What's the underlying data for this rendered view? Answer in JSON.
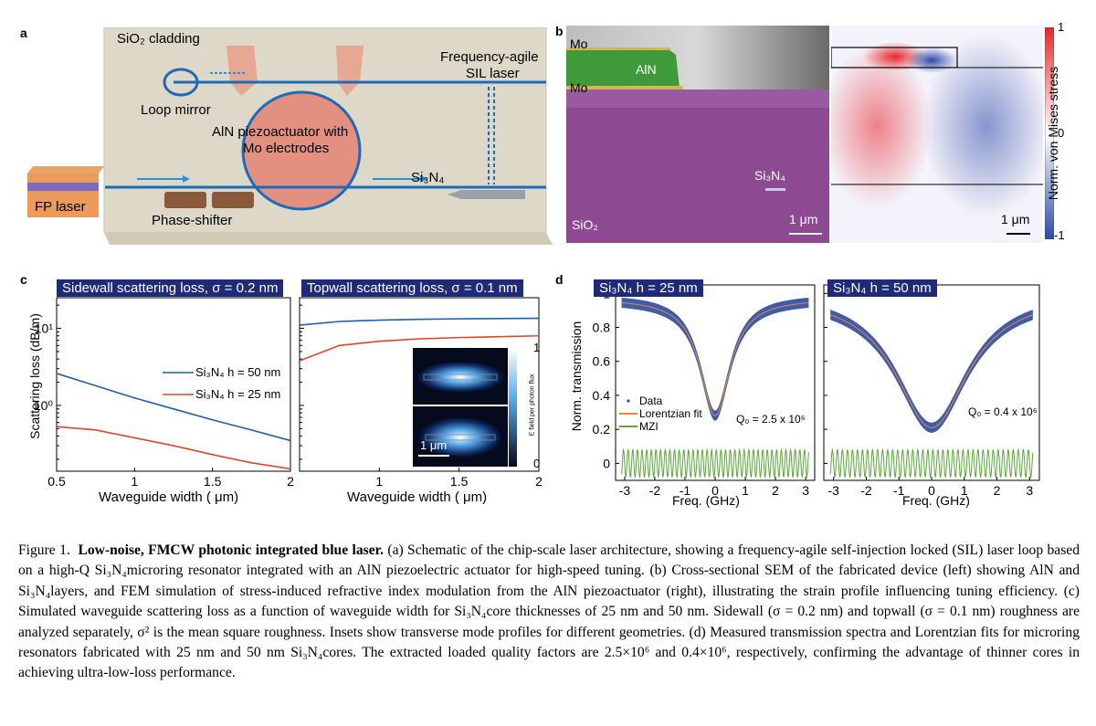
{
  "panels": {
    "a": {
      "label": "a",
      "cladding": "SiO₂ cladding",
      "sil_line1": "Frequency-agile",
      "sil_line2": "SIL laser",
      "loop_mirror": "Loop mirror",
      "aln_line1": "AlN piezoactuator with",
      "aln_line2": "Mo electrodes",
      "si3n4": "Si₃N₄",
      "fp_laser": "FP laser",
      "phase_shifter": "Phase-shifter"
    },
    "b": {
      "label": "b",
      "mo_top": "Mo",
      "aln": "AlN",
      "mo_bottom": "Mo",
      "si3n4": "Si₃N₄",
      "sio2": "SiO₂",
      "scale_left": "1 μm",
      "scale_right": "1 μm",
      "colorbar_label": "Norm. von Mises stress",
      "cb_top": "1",
      "cb_mid": "0",
      "cb_bottom": "-1",
      "colors": {
        "stress_pos": "#e8262b",
        "stress_neg": "#2b4aa8",
        "aln_false": "#3f9a3a",
        "sio2_false": "#8d4a93"
      }
    },
    "c": {
      "label": "c",
      "title_left": "Sidewall scattering loss, σ = 0.2 nm",
      "title_right": "Topwall scattering loss, σ = 0.1 nm",
      "ylabel": "Scattering loss (dB/m)",
      "xlabel_left": "Waveguide width ( μm)",
      "xlabel_right": "Waveguide width ( μm)",
      "legend_50": "Si₃N₄ h = 50 nm",
      "legend_25": "Si₃N₄ h = 25 nm",
      "inset_scale": "1 μm",
      "inset_cb_label": "E field per photon flux",
      "inset_cb_top": "1",
      "inset_cb_bottom": "0",
      "x_ticks_left": [
        "0.5",
        "1",
        "1.5",
        "2"
      ],
      "x_ticks_right": [
        "1",
        "1.5",
        "2"
      ],
      "y_ticks": [
        "10¹",
        "10⁰"
      ],
      "colors": {
        "h50": "#1f5fa8",
        "h25": "#e0472a"
      }
    },
    "d": {
      "label": "d",
      "title_left": "Si₃N₄ h = 25 nm",
      "title_right": "Si₃N₄ h = 50 nm",
      "ylabel": "Norm. transmission",
      "xlabel_left": "Freq. (GHz)",
      "xlabel_right": "Freq. (GHz)",
      "legend_data": "Data",
      "legend_fit": "Lorentzian fit",
      "legend_mzi": "MZI",
      "q_left": "Q₀ = 2.5 x 10⁶",
      "q_right": "Q₀ = 0.4 x 10⁶",
      "y_ticks": [
        "1",
        "0.8",
        "0.6",
        "0.4",
        "0.2",
        "0"
      ],
      "x_ticks": [
        "-3",
        "-2",
        "-1",
        "0",
        "1",
        "2",
        "3"
      ],
      "colors": {
        "data": "#2b49a0",
        "fit": "#e08a3c",
        "mzi": "#5aa83a"
      }
    }
  },
  "chart_data": [
    {
      "type": "line",
      "title": "Sidewall scattering loss, σ = 0.2 nm",
      "xlabel": "Waveguide width ( μm)",
      "ylabel": "Scattering loss (dB/m)",
      "xlim": [
        0.5,
        2
      ],
      "ylim": [
        0.14,
        25
      ],
      "yscale": "log",
      "x": [
        0.5,
        0.75,
        1.0,
        1.25,
        1.5,
        1.75,
        2.0
      ],
      "series": [
        {
          "name": "Si₃N₄ h = 50 nm",
          "values": [
            2.6,
            1.8,
            1.25,
            0.9,
            0.65,
            0.48,
            0.35
          ]
        },
        {
          "name": "Si₃N₄ h = 25 nm",
          "values": [
            0.53,
            0.48,
            0.38,
            0.3,
            0.23,
            0.18,
            0.15
          ]
        }
      ]
    },
    {
      "type": "line",
      "title": "Topwall scattering loss, σ = 0.1 nm",
      "xlabel": "Waveguide width ( μm)",
      "xlim": [
        0.5,
        2
      ],
      "ylim": [
        0.14,
        25
      ],
      "yscale": "log",
      "x": [
        0.5,
        0.75,
        1.0,
        1.25,
        1.5,
        1.75,
        2.0
      ],
      "series": [
        {
          "name": "Si₃N₄ h = 50 nm",
          "values": [
            11,
            12.3,
            12.8,
            13.1,
            13.3,
            13.4,
            13.5
          ]
        },
        {
          "name": "Si₃N₄ h = 25 nm",
          "values": [
            3.8,
            6.0,
            6.8,
            7.3,
            7.6,
            7.8,
            8.0
          ]
        }
      ]
    },
    {
      "type": "line",
      "title": "Si₃N₄ h = 25 nm",
      "xlabel": "Freq. (GHz)",
      "ylabel": "Norm. transmission",
      "xlim": [
        -3.3,
        3.3
      ],
      "ylim": [
        -0.1,
        1.05
      ],
      "lorentzian": {
        "center": 0,
        "min": 0.28,
        "baseline": 0.97,
        "hwhm": 0.6
      },
      "mzi": {
        "level": 0.0,
        "amplitude": 0.08
      },
      "annotation": "Q₀ = 2.5 x 10⁶"
    },
    {
      "type": "line",
      "title": "Si₃N₄ h = 50 nm",
      "xlabel": "Freq. (GHz)",
      "xlim": [
        -3.3,
        3.3
      ],
      "ylim": [
        -0.1,
        1.05
      ],
      "lorentzian": {
        "center": 0,
        "min": 0.21,
        "baseline": 1.0,
        "hwhm": 1.35
      },
      "mzi": {
        "level": 0.0,
        "amplitude": 0.08
      },
      "annotation": "Q₀ = 0.4 x 10⁶"
    }
  ],
  "caption": {
    "fig": "Figure 1.",
    "bold": "Low-noise, FMCW photonic integrated blue laser.",
    "text": " (a) Schematic of the chip-scale laser architecture, showing a frequency-agile self-injection locked (SIL) laser loop based on a high-Q Si₃N₄microring resonator integrated with an AlN piezoelectric actuator for high-speed tuning. (b) Cross-sectional SEM of the fabricated device (left) showing AlN and Si₃N₄layers, and FEM simulation of stress-induced refractive index modulation from the AlN piezoactuator (right), illustrating the strain profile influencing tuning efficiency. (c) Simulated waveguide scattering loss as a function of waveguide width for Si₃N₄core thicknesses of 25 nm and 50 nm. Sidewall (σ = 0.2 nm) and topwall (σ = 0.1 nm) roughness are analyzed separately, σ² is the mean square roughness. Insets show transverse mode profiles for different geometries. (d) Measured transmission spectra and Lorentzian fits for microring resonators fabricated with 25 nm and 50 nm Si₃N₄cores. The extracted loaded quality factors are 2.5×10⁶ and 0.4×10⁶, respectively, confirming the advantage of thinner cores in achieving ultra-low-loss performance."
  }
}
